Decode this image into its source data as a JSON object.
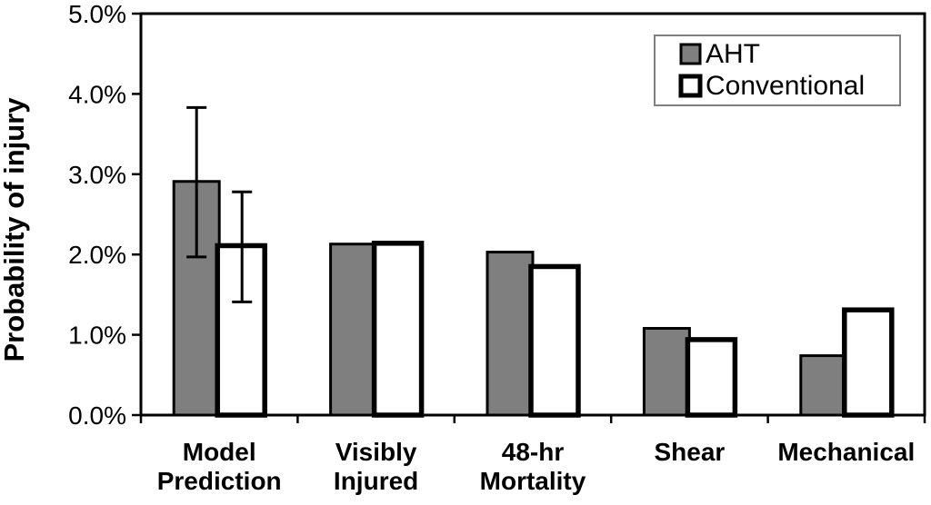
{
  "chart_data": {
    "type": "bar",
    "title": "",
    "xlabel": "",
    "ylabel": "Probability of injury",
    "ylim": [
      0,
      5
    ],
    "ytick_step": 1.0,
    "ytick_labels": [
      "0.0%",
      "1.0%",
      "2.0%",
      "3.0%",
      "4.0%",
      "5.0%"
    ],
    "grid": false,
    "legend_position": "top-right",
    "value_unit": "percent",
    "categories": [
      "Model Prediction",
      "Visibly Injured",
      "48-hr Mortality",
      "Shear",
      "Mechanical"
    ],
    "category_lines": [
      [
        "Model",
        "Prediction"
      ],
      [
        "Visibly",
        "Injured"
      ],
      [
        "48-hr",
        "Mortality"
      ],
      [
        "Shear"
      ],
      [
        "Mechanical"
      ]
    ],
    "series": [
      {
        "name": "AHT",
        "fill": "#7f7f7f",
        "values": [
          2.91,
          2.13,
          2.03,
          1.08,
          0.74
        ],
        "error_low": [
          1.97,
          null,
          null,
          null,
          null
        ],
        "error_high": [
          3.83,
          null,
          null,
          null,
          null
        ]
      },
      {
        "name": "Conventional",
        "fill": "#ffffff",
        "values": [
          2.11,
          2.14,
          1.85,
          0.94,
          1.31
        ],
        "error_low": [
          1.41,
          null,
          null,
          null,
          null
        ],
        "error_high": [
          2.78,
          null,
          null,
          null,
          null
        ]
      }
    ],
    "colors": {
      "bar_stroke": "#000000",
      "axis": "#000000",
      "background": "#ffffff",
      "legend_border": "#7f7f7f"
    }
  }
}
